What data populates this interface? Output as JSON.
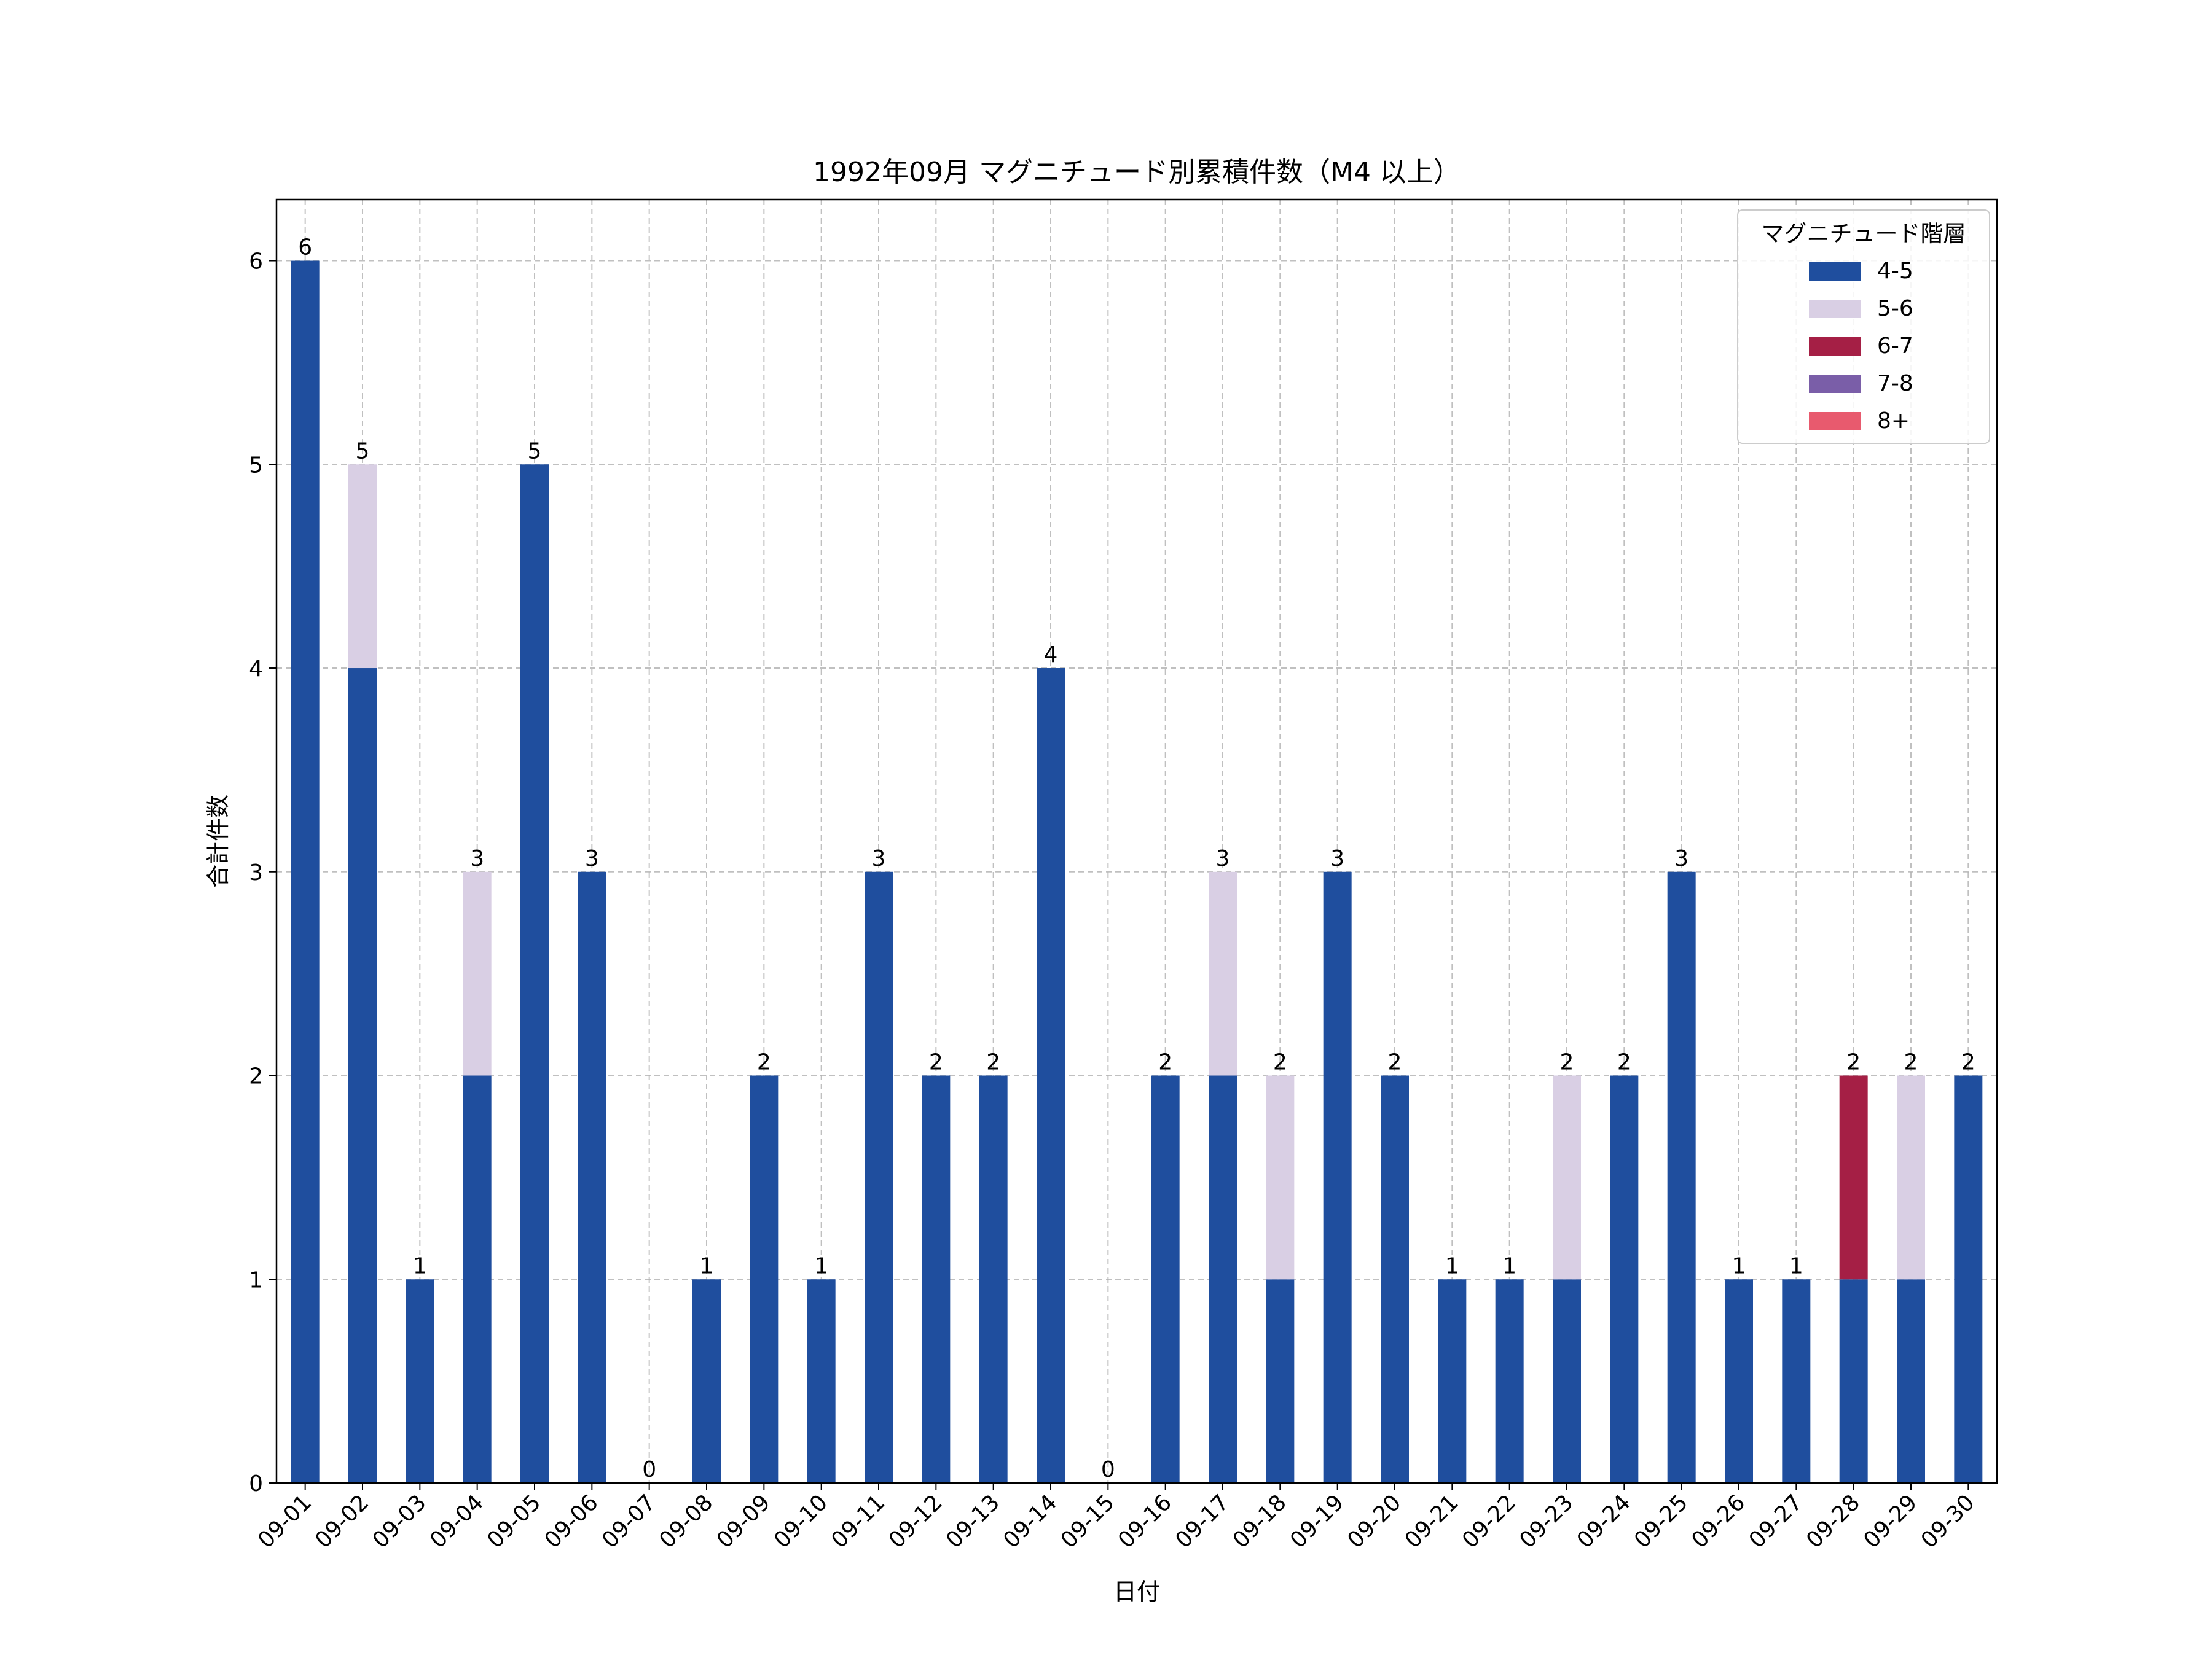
{
  "chart_data": {
    "type": "bar",
    "stacked": true,
    "title": "1992年09月 マグニチュード別累積件数（M4 以上）",
    "xlabel": "日付",
    "ylabel": "合計件数",
    "ylim": [
      0,
      6.3
    ],
    "yticks": [
      0,
      1,
      2,
      3,
      4,
      5,
      6
    ],
    "grid": true,
    "legend": {
      "title": "マグニチュード階層",
      "position": "top-right"
    },
    "categories": [
      "09-01",
      "09-02",
      "09-03",
      "09-04",
      "09-05",
      "09-06",
      "09-07",
      "09-08",
      "09-09",
      "09-10",
      "09-11",
      "09-12",
      "09-13",
      "09-14",
      "09-15",
      "09-16",
      "09-17",
      "09-18",
      "09-19",
      "09-20",
      "09-21",
      "09-22",
      "09-23",
      "09-24",
      "09-25",
      "09-26",
      "09-27",
      "09-28",
      "09-29",
      "09-30"
    ],
    "series": [
      {
        "name": "4-5",
        "color": "#1f4e9e",
        "values": [
          6,
          4,
          1,
          2,
          5,
          3,
          0,
          1,
          2,
          1,
          3,
          2,
          2,
          4,
          0,
          2,
          2,
          1,
          3,
          2,
          1,
          1,
          1,
          2,
          3,
          1,
          1,
          1,
          1,
          2
        ]
      },
      {
        "name": "5-6",
        "color": "#d9cfe4",
        "values": [
          0,
          1,
          0,
          1,
          0,
          0,
          0,
          0,
          0,
          0,
          0,
          0,
          0,
          0,
          0,
          0,
          1,
          1,
          0,
          0,
          0,
          0,
          1,
          0,
          0,
          0,
          0,
          0,
          1,
          0
        ]
      },
      {
        "name": "6-7",
        "color": "#a51f45",
        "values": [
          0,
          0,
          0,
          0,
          0,
          0,
          0,
          0,
          0,
          0,
          0,
          0,
          0,
          0,
          0,
          0,
          0,
          0,
          0,
          0,
          0,
          0,
          0,
          0,
          0,
          0,
          0,
          1,
          0,
          0
        ]
      },
      {
        "name": "7-8",
        "color": "#7a5ea8",
        "values": [
          0,
          0,
          0,
          0,
          0,
          0,
          0,
          0,
          0,
          0,
          0,
          0,
          0,
          0,
          0,
          0,
          0,
          0,
          0,
          0,
          0,
          0,
          0,
          0,
          0,
          0,
          0,
          0,
          0,
          0
        ]
      },
      {
        "name": "8+",
        "color": "#e85a6e",
        "values": [
          0,
          0,
          0,
          0,
          0,
          0,
          0,
          0,
          0,
          0,
          0,
          0,
          0,
          0,
          0,
          0,
          0,
          0,
          0,
          0,
          0,
          0,
          0,
          0,
          0,
          0,
          0,
          0,
          0,
          0
        ]
      }
    ],
    "totals": [
      6,
      5,
      1,
      3,
      5,
      3,
      0,
      1,
      2,
      1,
      3,
      2,
      2,
      4,
      0,
      2,
      3,
      2,
      3,
      2,
      1,
      1,
      2,
      2,
      3,
      1,
      1,
      2,
      2,
      2
    ]
  }
}
